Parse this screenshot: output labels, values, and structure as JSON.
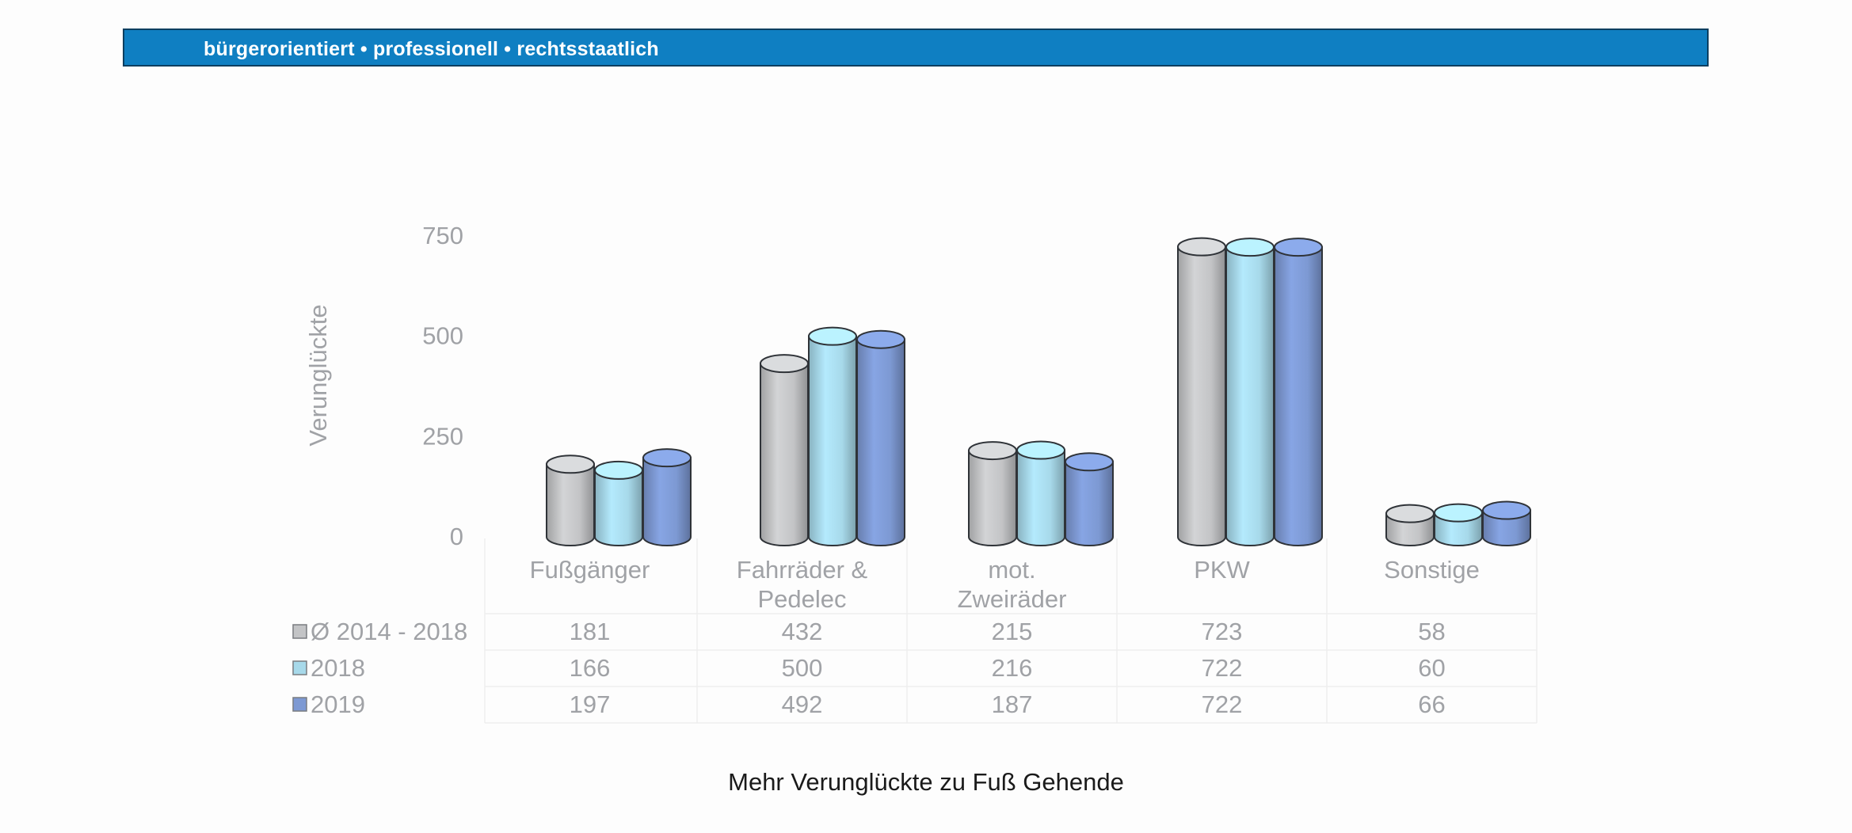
{
  "banner": {
    "text": "bürgerorientiert • professionell • rechtsstaatlich"
  },
  "caption": "Mehr Verunglückte zu Fuß Gehende",
  "colors": {
    "banner": "#0f7fc2",
    "series_2014_2018": "#c3c4c6",
    "series_2018": "#a7d9ea",
    "series_2019": "#7d99d3"
  },
  "chart_data": {
    "type": "bar",
    "style": "3d-cylinder with data table",
    "title": "",
    "xlabel": "",
    "ylabel": "Verunglückte",
    "ylim": [
      0,
      750
    ],
    "yticks": [
      0,
      250,
      500,
      750
    ],
    "grid": false,
    "legend": "data table below chart",
    "categories": [
      "Fußgänger",
      "Fahrräder & Pedelec",
      "mot. Zweiräder",
      "PKW",
      "Sonstige"
    ],
    "category_lines": [
      [
        "Fußgänger"
      ],
      [
        "Fahrräder &",
        "Pedelec"
      ],
      [
        "mot.",
        "Zweiräder"
      ],
      [
        "PKW"
      ],
      [
        "Sonstige"
      ]
    ],
    "series": [
      {
        "name": "Ø 2014 - 2018",
        "color": "#c3c4c6",
        "values": [
          181,
          432,
          215,
          723,
          58
        ]
      },
      {
        "name": "2018",
        "color": "#a7d9ea",
        "values": [
          166,
          500,
          216,
          722,
          60
        ]
      },
      {
        "name": "2019",
        "color": "#7d99d3",
        "values": [
          197,
          492,
          187,
          722,
          66
        ]
      }
    ]
  }
}
